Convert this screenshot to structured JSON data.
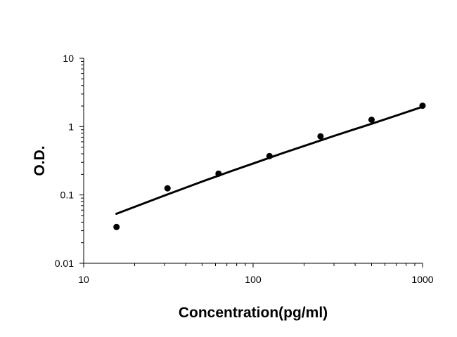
{
  "chart_data": {
    "type": "scatter",
    "title": "",
    "xlabel": "Concentration(pg/ml)",
    "ylabel": "O.D.",
    "x_scale": "log",
    "y_scale": "log",
    "xlim": [
      10,
      1000
    ],
    "ylim": [
      0.01,
      10
    ],
    "x_ticks": [
      10,
      100,
      1000
    ],
    "x_tick_labels": [
      "10",
      "100",
      "1000"
    ],
    "y_ticks": [
      0.01,
      0.1,
      1,
      10
    ],
    "y_tick_labels": [
      "0.01",
      "0.1",
      "1",
      "10"
    ],
    "grid": false,
    "legend": "none",
    "series": [
      {
        "kind": "points",
        "x": [
          15.625,
          31.25,
          62.5,
          125,
          250,
          500,
          1000
        ],
        "y": [
          0.034,
          0.125,
          0.205,
          0.37,
          0.72,
          1.26,
          2.02
        ]
      },
      {
        "kind": "fit-curve",
        "x": [
          15.6,
          20,
          30,
          50,
          75,
          100,
          150,
          200,
          300,
          400,
          500,
          700,
          1000
        ],
        "y": [
          0.053,
          0.067,
          0.098,
          0.157,
          0.225,
          0.288,
          0.41,
          0.52,
          0.73,
          0.92,
          1.1,
          1.45,
          1.95
        ]
      }
    ],
    "colors": {
      "points": "#000000",
      "curve": "#000000",
      "axis": "#000000"
    }
  }
}
